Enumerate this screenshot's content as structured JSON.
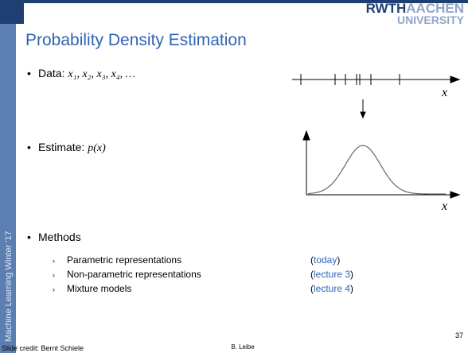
{
  "logo": {
    "part1": "RWTH",
    "part2": "AACHEN",
    "part3": "UNIVERSITY"
  },
  "sidebar": "Machine Learning Winter '17",
  "title": "Probability Density Estimation",
  "bullets": [
    {
      "label": "Data:",
      "math": "x₁, x₂, x₃, x₄, …"
    },
    {
      "label": "Estimate:",
      "math": "p(x)"
    },
    {
      "label": "Methods"
    }
  ],
  "methods": [
    {
      "text": "Parametric representations",
      "open": "(",
      "link": "today",
      "close": ")"
    },
    {
      "text": "Non-parametric representations",
      "open": "(",
      "link": "lecture 3",
      "close": ")"
    },
    {
      "text": "Mixture models",
      "open": "(",
      "link": "lecture 4",
      "close": ")"
    }
  ],
  "diagram": {
    "axis_label_top": "x",
    "axis_label_bottom": "x"
  },
  "footer": {
    "credit": "Slide credit: Bernt Schiele",
    "author": "B. Leibe",
    "page": "37"
  }
}
